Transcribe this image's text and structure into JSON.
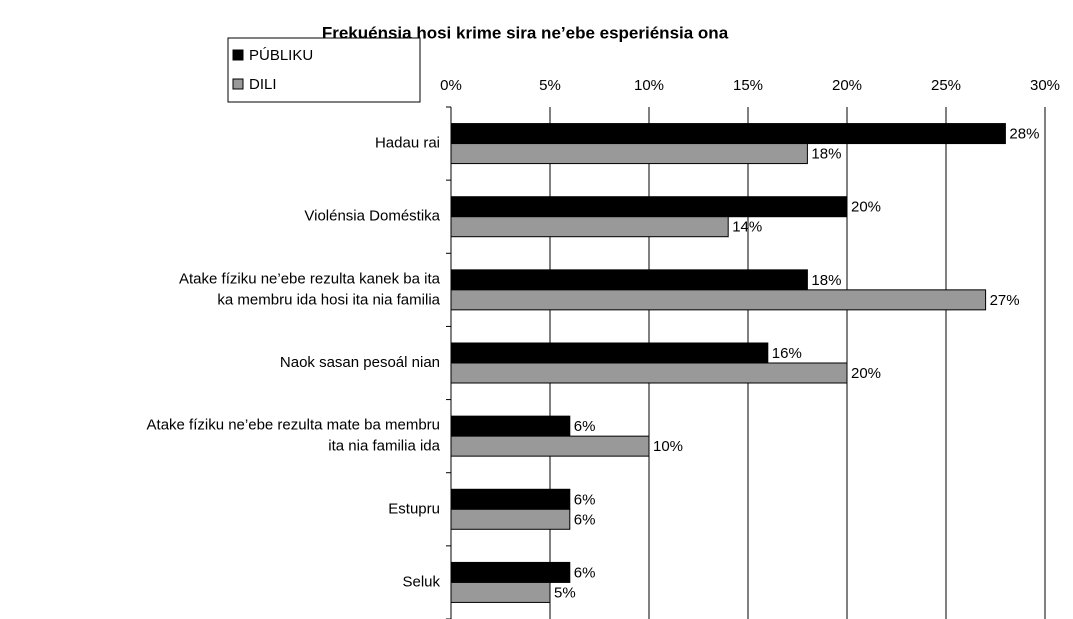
{
  "chart_data": {
    "type": "hbar",
    "title": "Frekuénsia hosi krime sira ne’ebe esperiénsia ona",
    "categories": [
      [
        "Hadau rai"
      ],
      [
        "Violénsia Doméstika"
      ],
      [
        "Atake fíziku ne’ebe rezulta kanek ba ita",
        "ka membru ida hosi ita nia familia"
      ],
      [
        "Naok sasan pesoál nian"
      ],
      [
        "Atake fíziku ne’ebe rezulta mate ba membru",
        "ita nia familia ida"
      ],
      [
        "Estupru"
      ],
      [
        "Seluk"
      ]
    ],
    "series": [
      {
        "name": "PÚBLIKU",
        "color": "#000000",
        "values": [
          28,
          20,
          18,
          16,
          6,
          6,
          6
        ],
        "value_labels": [
          "28%",
          "20%",
          "18%",
          "16%",
          "6%",
          "6%",
          "6%"
        ]
      },
      {
        "name": "DILI",
        "color": "#999999",
        "values": [
          18,
          14,
          27,
          20,
          10,
          6,
          5
        ],
        "value_labels": [
          "18%",
          "14%",
          "27%",
          "20%",
          "10%",
          "6%",
          "5%"
        ]
      }
    ],
    "xlim": [
      0,
      30
    ],
    "xticks": [
      {
        "value": 0,
        "label": "0%"
      },
      {
        "value": 5,
        "label": "5%"
      },
      {
        "value": 10,
        "label": "10%"
      },
      {
        "value": 15,
        "label": "15%"
      },
      {
        "value": 20,
        "label": "20%"
      },
      {
        "value": 25,
        "label": "25%"
      },
      {
        "value": 30,
        "label": "30%"
      }
    ],
    "grid": true
  }
}
